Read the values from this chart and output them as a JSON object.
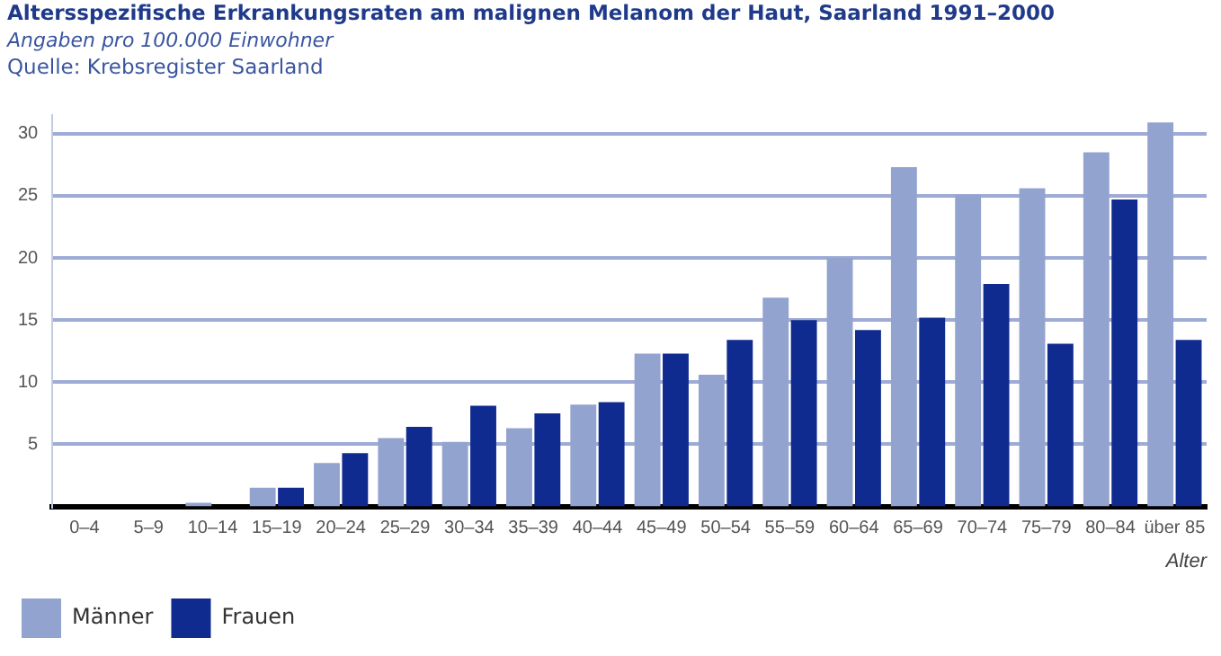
{
  "chart_data": {
    "type": "bar",
    "title": "Altersspezifische Erkrankungsraten am malignen Melanom der Haut, Saarland 1991–2000",
    "subtitle": "Angaben pro 100.000 Einwohner",
    "annotations": [
      "Quelle: Krebsregister Saarland"
    ],
    "xlabel": "Alter",
    "categories": [
      "0–4",
      "5–9",
      "10–14",
      "15–19",
      "20–24",
      "25–29",
      "30–34",
      "35–39",
      "40–44",
      "45–49",
      "50–54",
      "55–59",
      "60–64",
      "65–69",
      "70–74",
      "75–79",
      "80–84",
      "über 85"
    ],
    "series": [
      {
        "name": "Männer",
        "color": "#93a3cf",
        "values": [
          0,
          0,
          0.3,
          1.5,
          3.5,
          5.5,
          5.2,
          6.3,
          8.2,
          12.3,
          10.6,
          16.8,
          20.0,
          27.3,
          25.1,
          25.6,
          28.5,
          30.9
        ]
      },
      {
        "name": "Frauen",
        "color": "#102b8f",
        "values": [
          0,
          0,
          0,
          1.5,
          4.3,
          6.4,
          8.1,
          7.5,
          8.4,
          12.3,
          13.4,
          15.0,
          14.2,
          15.2,
          17.9,
          13.1,
          24.7,
          13.4
        ]
      }
    ],
    "ylim": [
      0,
      31.5
    ],
    "yticks": [
      5,
      10,
      15,
      20,
      25,
      30
    ],
    "grid": "y",
    "legend": "bottom left"
  }
}
